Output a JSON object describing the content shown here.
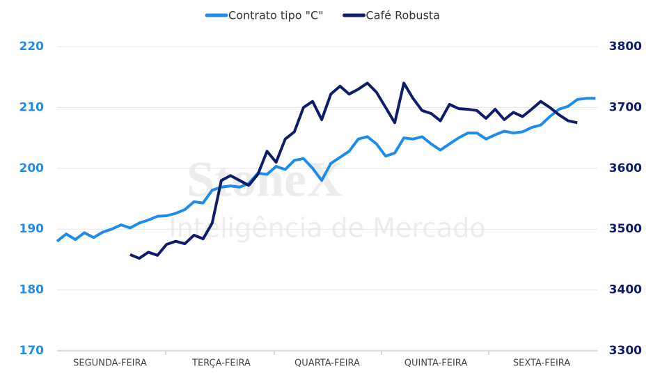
{
  "chart_data": {
    "type": "line",
    "watermark": {
      "title": "StoneX",
      "subtitle": "Inteligência de Mercado"
    },
    "x": [
      0,
      1,
      2,
      3,
      4,
      5,
      6,
      7,
      8,
      9,
      10,
      11,
      12,
      13,
      14,
      15,
      16,
      17,
      18,
      19,
      20,
      21,
      22,
      23,
      24,
      25,
      26,
      27,
      28,
      29,
      30,
      31,
      32,
      33,
      34,
      35,
      36,
      37,
      38,
      39,
      40,
      41,
      42,
      43,
      44,
      45,
      46,
      47,
      48,
      49,
      50,
      51,
      52,
      53,
      54,
      55,
      56,
      57,
      58,
      59
    ],
    "xlim": [
      0,
      59.2
    ],
    "xticks": [
      {
        "value": 5.8,
        "label": "SEGUNDA-FEIRA"
      },
      {
        "value": 18,
        "label": "TERÇA-FEIRA"
      },
      {
        "value": 29.6,
        "label": "QUARTA-FEIRA"
      },
      {
        "value": 41.5,
        "label": "QUINTA-FEIRA"
      },
      {
        "value": 53.1,
        "label": "SEXTA-FEIRA"
      }
    ],
    "ylim": [
      170,
      220
    ],
    "yticks": [
      170,
      180,
      190,
      200,
      210,
      220
    ],
    "y2lim": [
      3300,
      3800
    ],
    "y2ticks": [
      3300,
      3400,
      3500,
      3600,
      3700,
      3800
    ],
    "grid": true,
    "legend": "top",
    "series": [
      {
        "name": "Contrato tipo \"C\"",
        "color": "#1f8ceb",
        "axis": "y",
        "values": [
          188.0,
          189.2,
          188.3,
          189.4,
          188.6,
          189.5,
          190.0,
          190.7,
          190.2,
          191.0,
          191.5,
          192.1,
          192.2,
          192.6,
          193.2,
          194.5,
          194.3,
          196.4,
          196.9,
          197.1,
          196.9,
          197.5,
          199.2,
          199.0,
          200.3,
          199.8,
          201.3,
          201.6,
          200.0,
          198.0,
          200.8,
          201.8,
          202.8,
          204.8,
          205.2,
          204.0,
          202.0,
          202.5,
          205.0,
          204.8,
          205.2,
          204.0,
          203.0,
          204.0,
          205.0,
          205.8,
          205.8,
          204.8,
          205.5,
          206.1,
          205.8,
          206.0,
          206.7,
          207.1,
          208.5,
          209.7,
          210.2,
          211.3,
          211.5,
          211.5
        ]
      },
      {
        "name": "Café Robusta",
        "color": "#0f1c6b",
        "axis": "y2",
        "values": [
          null,
          null,
          null,
          null,
          null,
          null,
          null,
          null,
          3458,
          3452,
          3462,
          3457,
          3475,
          3480,
          3476,
          3490,
          3484,
          3510,
          3580,
          3588,
          3580,
          3572,
          3590,
          3628,
          3610,
          3648,
          3660,
          3700,
          3710,
          3680,
          3722,
          3735,
          3722,
          3730,
          3740,
          3725,
          3700,
          3675,
          3740,
          3715,
          3695,
          3690,
          3678,
          3705,
          3698,
          3697,
          3695,
          3682,
          3697,
          3680,
          3692,
          3685,
          3697,
          3710,
          3700,
          3688,
          3678,
          3675,
          null,
          null
        ]
      }
    ]
  }
}
